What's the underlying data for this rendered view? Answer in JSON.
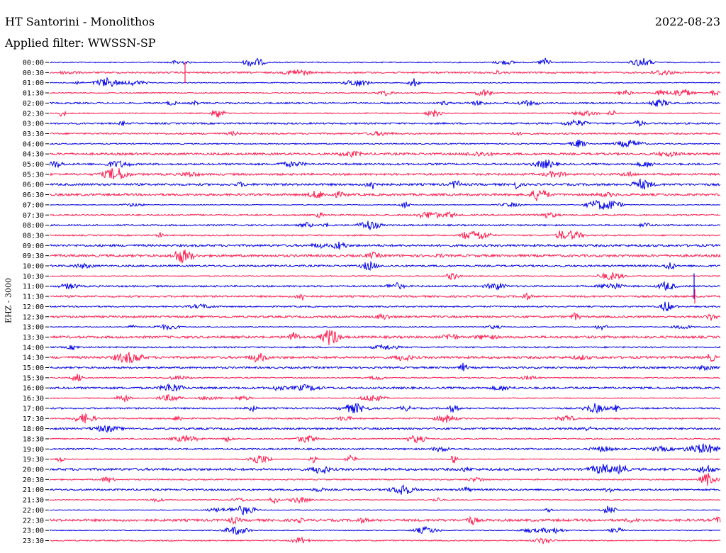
{
  "header": {
    "title": "HT Santorini - Monolithos",
    "filter": "Applied filter: WWSSN-SP",
    "date": "2022-08-23",
    "channel": "EHZ - 3000"
  },
  "colors": {
    "trace_a": "#0000e6",
    "trace_b": "#ff1a4d",
    "background": "#ffffff"
  },
  "chart_data": {
    "type": "line",
    "title": "HT Santorini - Monolithos",
    "subtitle": "Applied filter: WWSSN-SP",
    "ylabel": "EHZ - 3000",
    "y_tick_labels": [
      "00:00",
      "00:30",
      "01:00",
      "01:30",
      "02:00",
      "02:30",
      "03:00",
      "03:30",
      "04:00",
      "04:30",
      "05:00",
      "05:30",
      "06:00",
      "06:30",
      "07:00",
      "07:30",
      "08:00",
      "08:30",
      "09:00",
      "09:30",
      "10:00",
      "10:30",
      "11:00",
      "11:30",
      "12:00",
      "12:30",
      "13:00",
      "13:30",
      "14:00",
      "14:30",
      "15:00",
      "15:30",
      "16:00",
      "16:30",
      "17:00",
      "17:30",
      "18:00",
      "18:30",
      "19:00",
      "19:30",
      "20:00",
      "20:30",
      "21:00",
      "21:30",
      "22:00",
      "22:30",
      "23:00",
      "23:30"
    ],
    "series_colors": [
      "#0000e6",
      "#ff1a4d"
    ],
    "grid": false,
    "legend": "none"
  }
}
